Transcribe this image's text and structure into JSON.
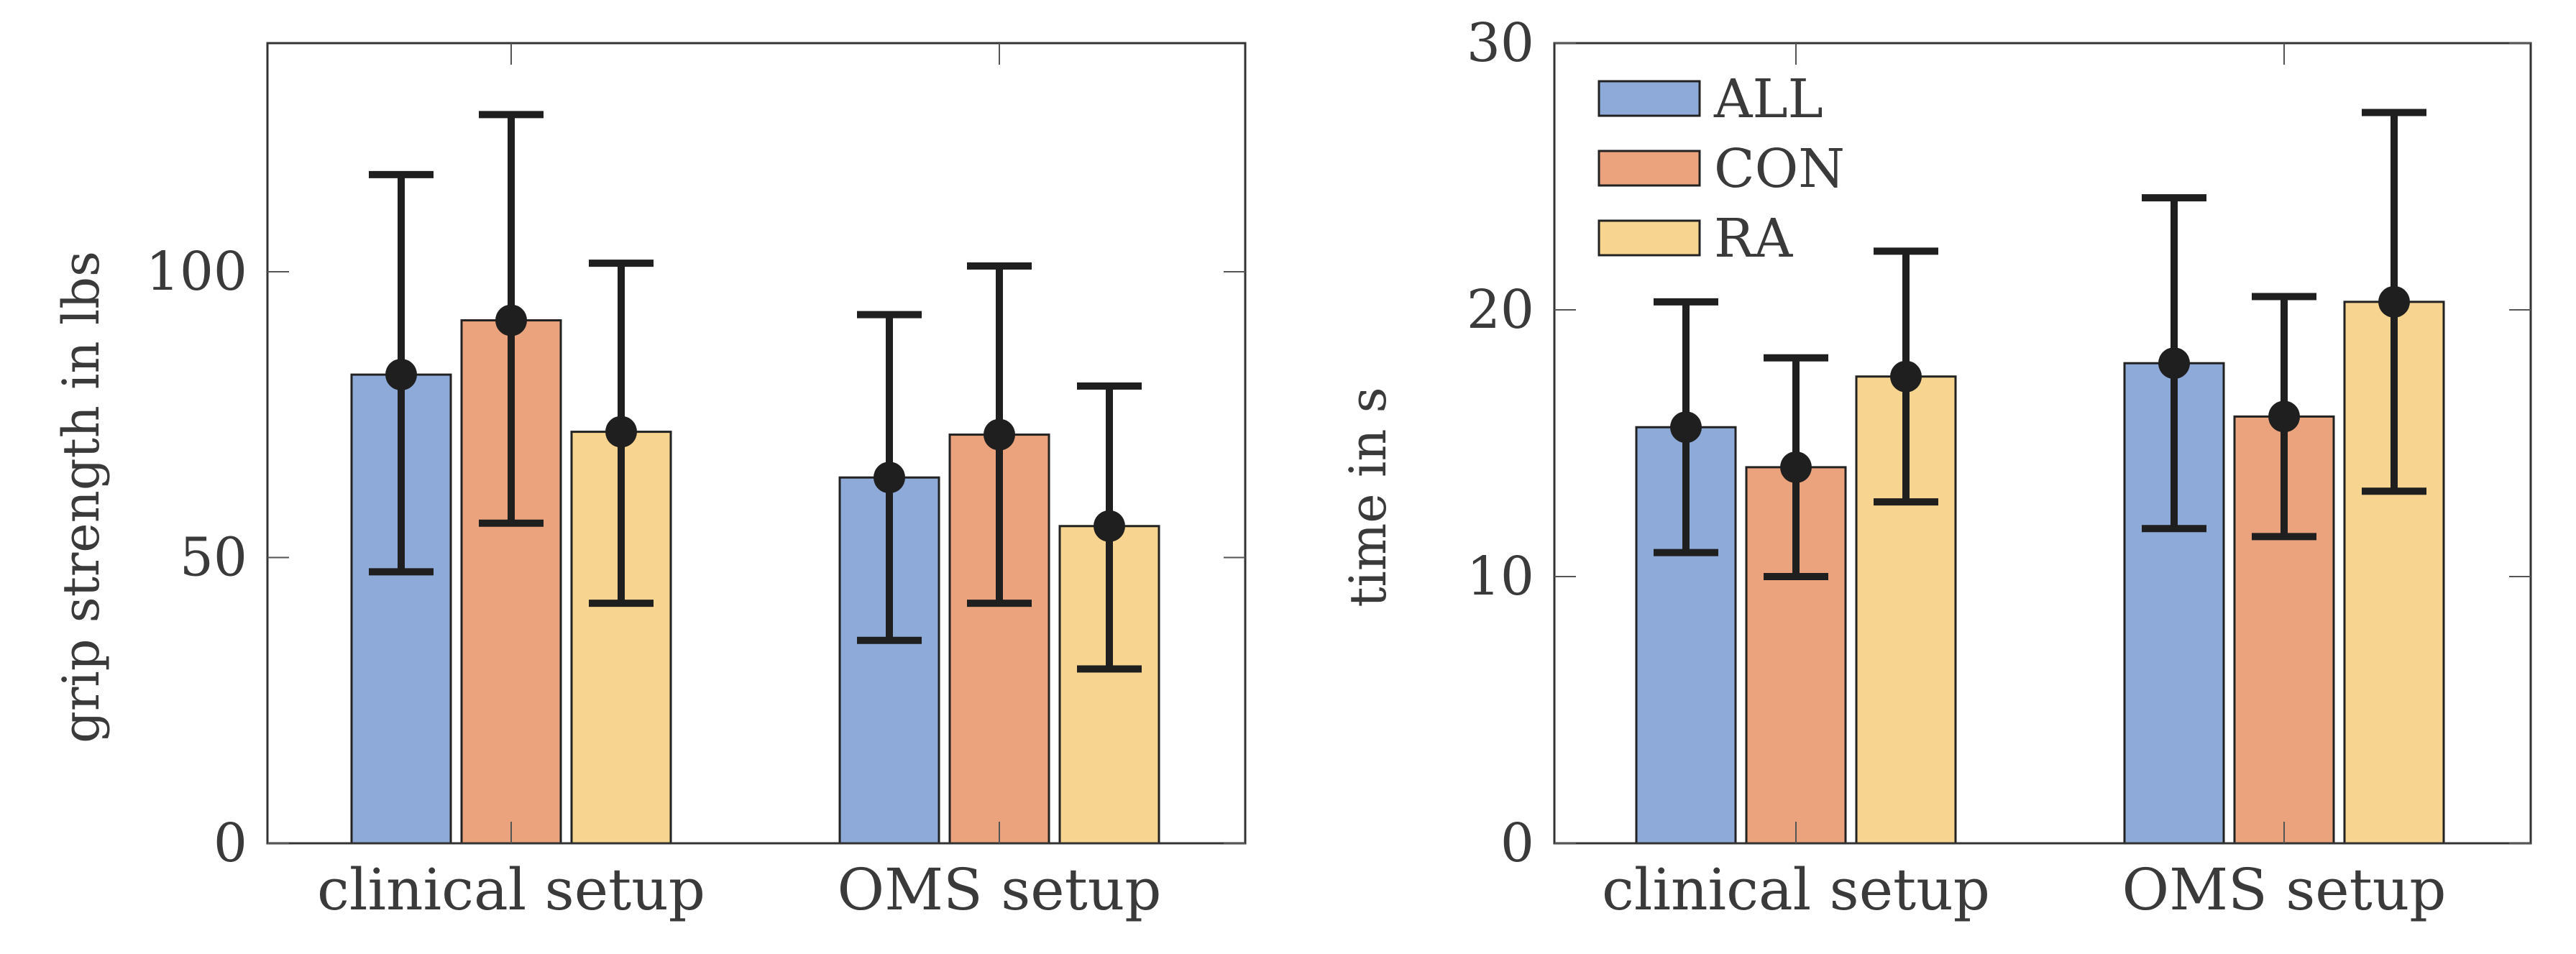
{
  "colors": {
    "ALL": "#8eaad9",
    "CON": "#eba37d",
    "RA": "#f7d48f",
    "bar_edge": "#222222",
    "error_bar": "#1f1f1f"
  },
  "chart_data": [
    {
      "type": "bar",
      "categories": [
        "clinical setup",
        "OMS setup"
      ],
      "series": [
        {
          "name": "ALL",
          "values": [
            82,
            64
          ],
          "error_low": [
            47.5,
            35.5
          ],
          "error_high": [
            117,
            92.5
          ]
        },
        {
          "name": "CON",
          "values": [
            91.5,
            71.5
          ],
          "error_low": [
            56,
            42
          ],
          "error_high": [
            127.5,
            101
          ]
        },
        {
          "name": "RA",
          "values": [
            72,
            55.5
          ],
          "error_low": [
            42,
            30.5
          ],
          "error_high": [
            101.5,
            80
          ]
        }
      ],
      "title": "",
      "xlabel": "",
      "ylabel": "grip strength in lbs",
      "ylim": [
        0,
        140
      ],
      "yticks": [
        0,
        50,
        100
      ],
      "ytick_labels": [
        "0",
        "50",
        "100"
      ],
      "grid": false,
      "legend": false
    },
    {
      "type": "bar",
      "categories": [
        "clinical setup",
        "OMS setup"
      ],
      "series": [
        {
          "name": "ALL",
          "values": [
            15.6,
            18
          ],
          "error_low": [
            10.9,
            11.8
          ],
          "error_high": [
            20.3,
            24.2
          ]
        },
        {
          "name": "CON",
          "values": [
            14.1,
            16
          ],
          "error_low": [
            10,
            11.5
          ],
          "error_high": [
            18.2,
            20.5
          ]
        },
        {
          "name": "RA",
          "values": [
            17.5,
            20.3
          ],
          "error_low": [
            12.8,
            13.2
          ],
          "error_high": [
            22.2,
            27.4
          ]
        }
      ],
      "title": "",
      "xlabel": "",
      "ylabel": "time in s",
      "ylim": [
        0,
        30
      ],
      "yticks": [
        0,
        10,
        20,
        30
      ],
      "ytick_labels": [
        "0",
        "10",
        "20",
        "30"
      ],
      "grid": false,
      "legend": true,
      "legend_position": "top-left",
      "legend_entries": [
        "ALL",
        "CON",
        "RA"
      ]
    }
  ]
}
